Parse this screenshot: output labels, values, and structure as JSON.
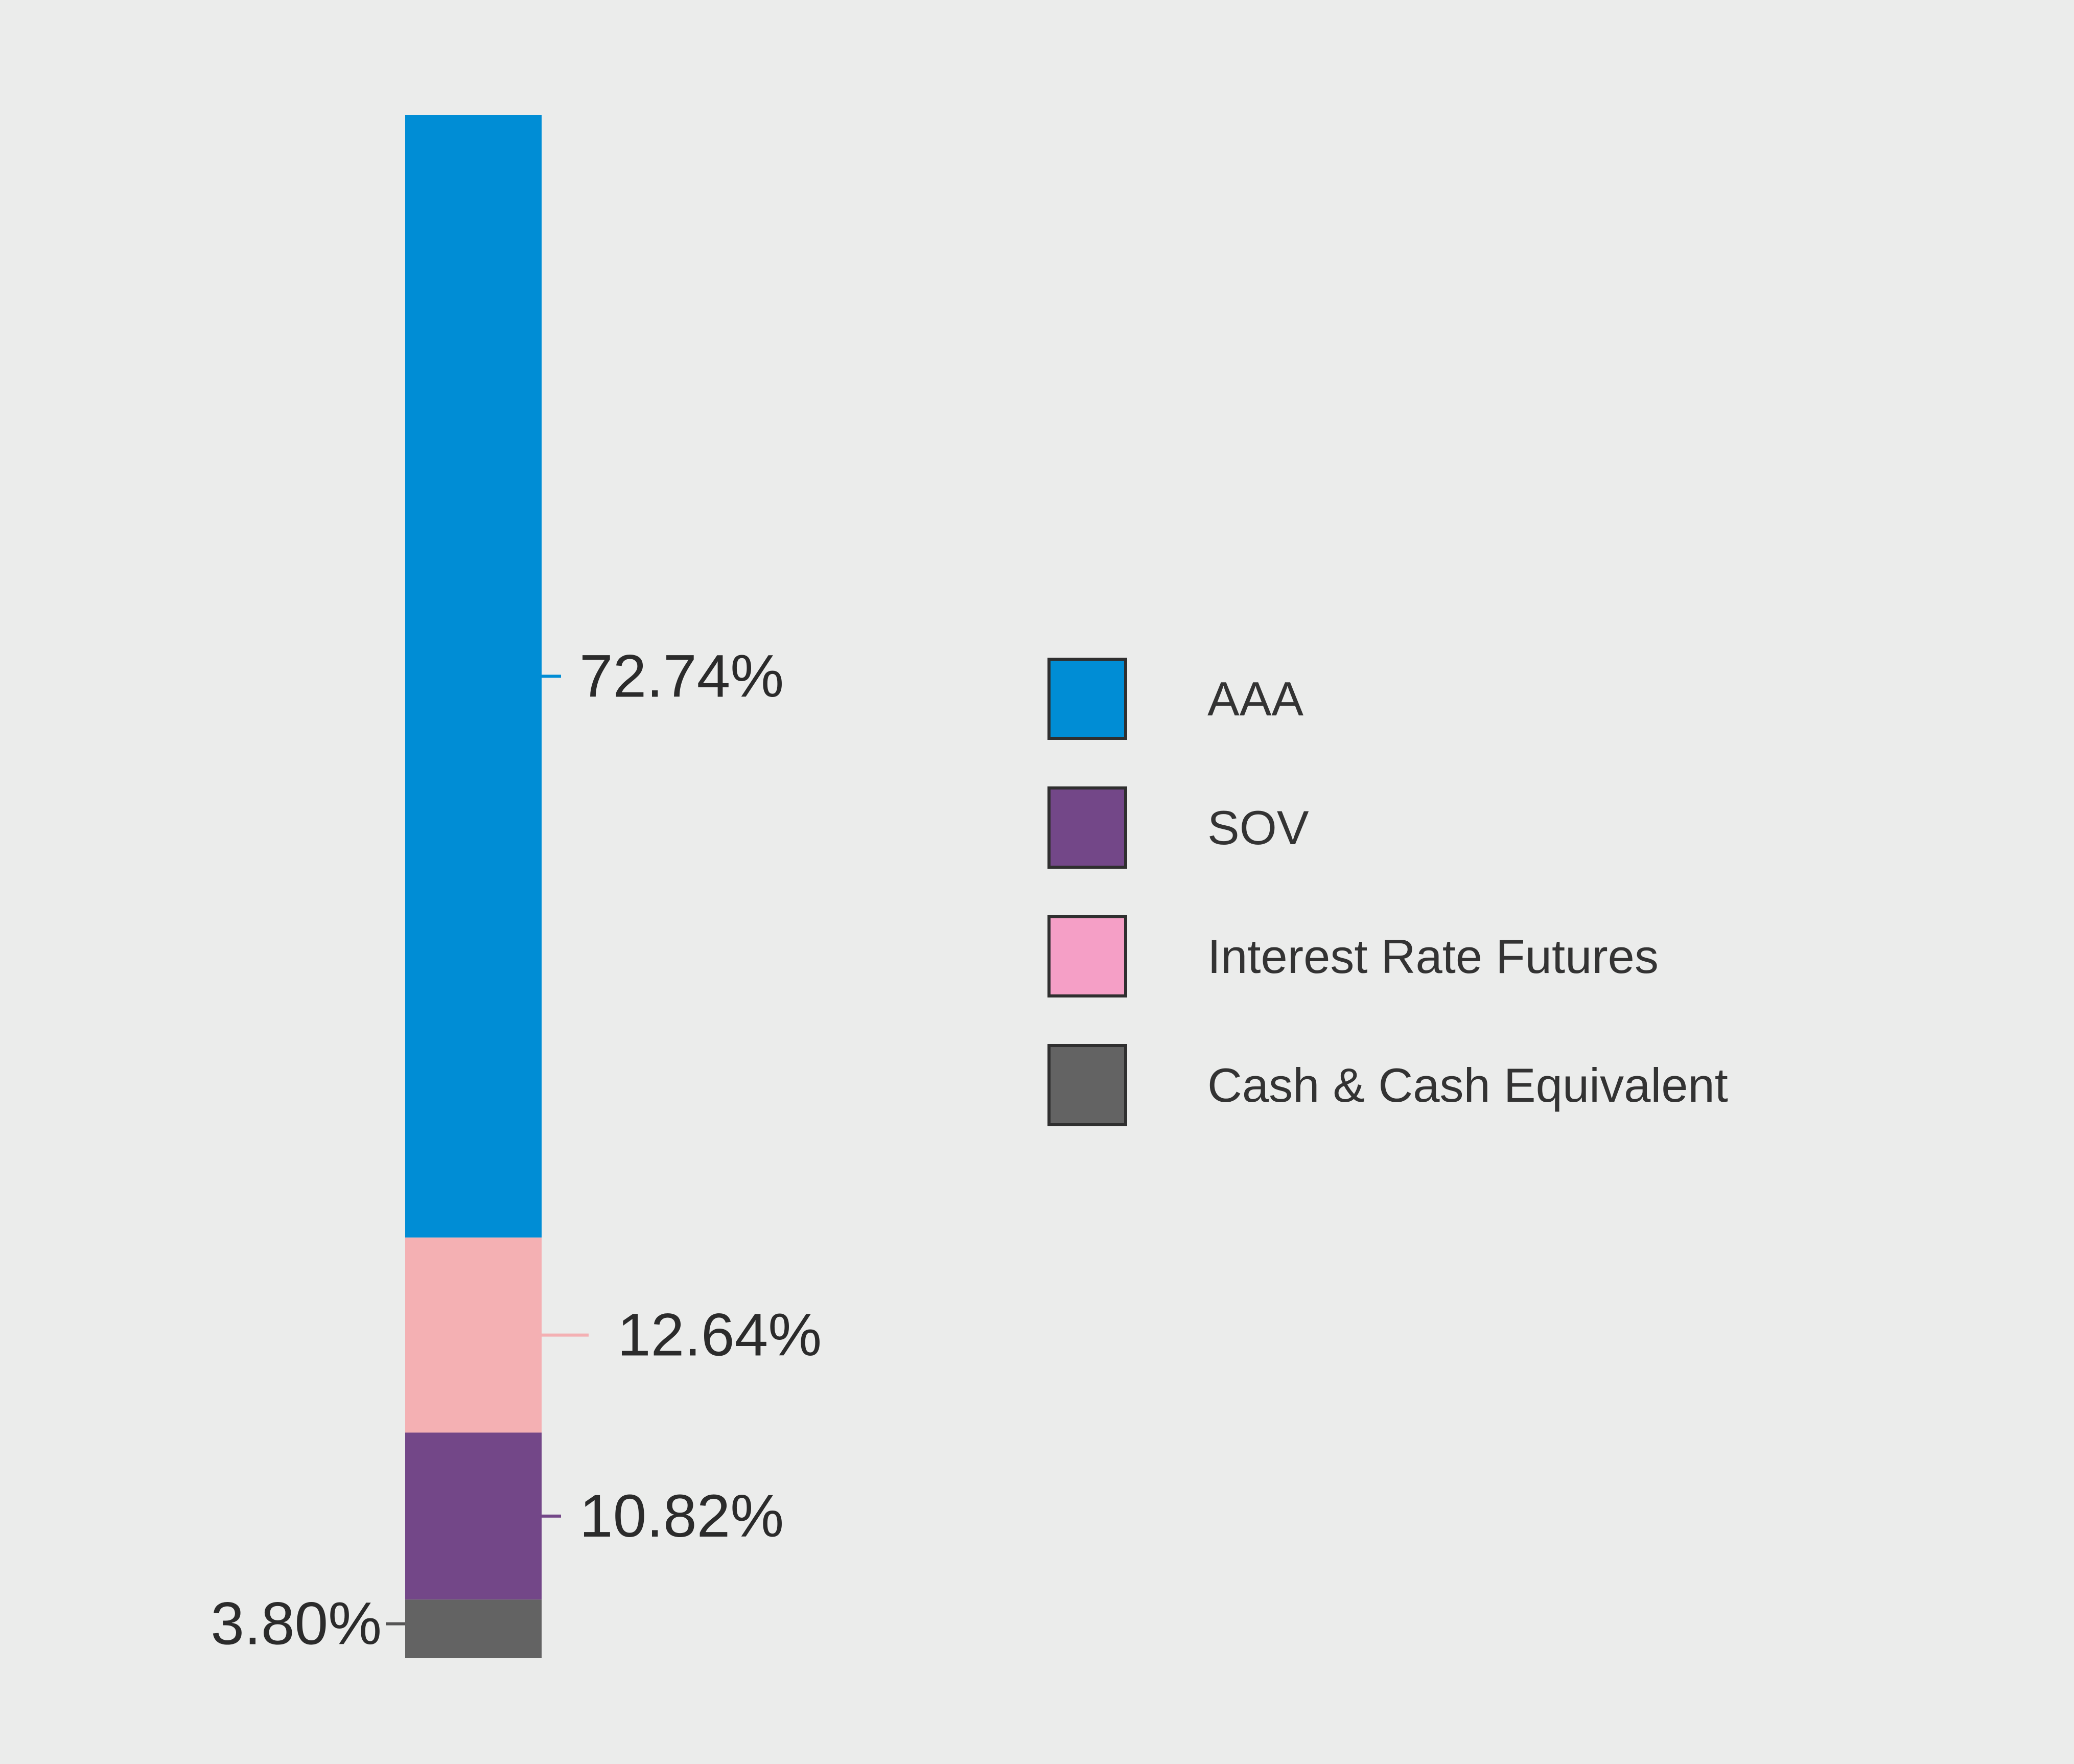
{
  "chart_data": {
    "type": "bar",
    "subtype": "stacked-100",
    "categories": [
      "AAA",
      "Interest Rate Futures",
      "SOV",
      "Cash & Cash Equivalent"
    ],
    "values": [
      72.74,
      12.64,
      10.82,
      3.8
    ],
    "unit": "%",
    "labels": [
      "72.74%",
      "12.64%",
      "10.82%",
      "3.80%"
    ],
    "colors": [
      "#008dd5",
      "#f4b0b3",
      "#734788",
      "#636363"
    ],
    "legend": {
      "placement": "right",
      "items": [
        {
          "label": "AAA",
          "color": "#008dd5"
        },
        {
          "label": "SOV",
          "color": "#734788"
        },
        {
          "label": "Interest Rate Futures",
          "color": "#f59fc6"
        },
        {
          "label": "Cash & Cash Equivalent",
          "color": "#636363"
        }
      ]
    },
    "title": "",
    "xlabel": "",
    "ylabel": "",
    "grid": false
  }
}
